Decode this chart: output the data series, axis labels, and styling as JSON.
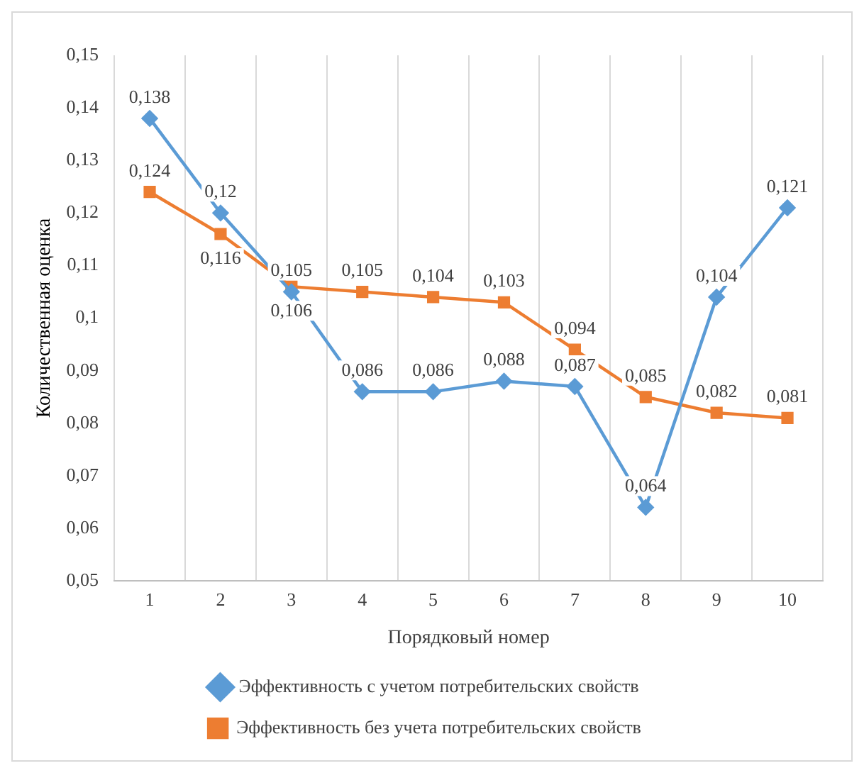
{
  "chart_data": {
    "type": "line",
    "xlabel": "Порядковый номер",
    "ylabel": "Количественная оценка",
    "categories": [
      "1",
      "2",
      "3",
      "4",
      "5",
      "6",
      "7",
      "8",
      "9",
      "10"
    ],
    "series": [
      {
        "name": "Эффективность с учетом потребительских свойств",
        "color": "#5b9bd5",
        "marker": "diamond",
        "values": [
          0.138,
          0.12,
          0.105,
          0.086,
          0.086,
          0.088,
          0.087,
          0.064,
          0.104,
          0.121
        ],
        "value_labels": [
          "0,138",
          "0,12",
          "0,105",
          "0,086",
          "0,086",
          "0,088",
          "0,087",
          "0,064",
          "0,104",
          "0,121"
        ]
      },
      {
        "name": "Эффективность без учета потребительских свойств",
        "color": "#ed7d31",
        "marker": "square",
        "values": [
          0.124,
          0.116,
          0.106,
          0.105,
          0.104,
          0.103,
          0.094,
          0.085,
          0.082,
          0.081
        ],
        "value_labels": [
          "0,124",
          "0,116",
          "0,106",
          "0,105",
          "0,104",
          "0,103",
          "0,094",
          "0,085",
          "0,082",
          "0,081"
        ]
      }
    ],
    "ylim": [
      0.05,
      0.15
    ],
    "yticks": [
      {
        "value": 0.05,
        "label": "0,05"
      },
      {
        "value": 0.06,
        "label": "0,06"
      },
      {
        "value": 0.07,
        "label": "0,07"
      },
      {
        "value": 0.08,
        "label": "0,08"
      },
      {
        "value": 0.09,
        "label": "0,09"
      },
      {
        "value": 0.1,
        "label": "0,1"
      },
      {
        "value": 0.11,
        "label": "0,11"
      },
      {
        "value": 0.12,
        "label": "0,12"
      },
      {
        "value": 0.13,
        "label": "0,13"
      },
      {
        "value": 0.14,
        "label": "0,14"
      },
      {
        "value": 0.15,
        "label": "0,15"
      }
    ],
    "grid": "x",
    "legend": "bottom",
    "line_style": "solid"
  }
}
